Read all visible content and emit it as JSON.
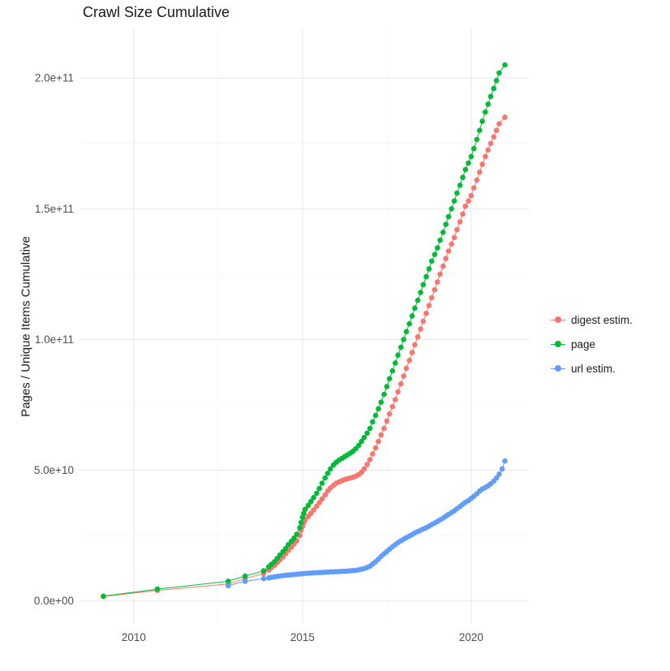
{
  "chart_data": {
    "type": "line",
    "marker": "point",
    "title": "Crawl Size Cumulative",
    "xlabel": "",
    "ylabel": "Pages / Unique Items Cumulative",
    "legend_position": "right",
    "grid": {
      "major": "#e8e8e8",
      "minor": "#f4f4f4"
    },
    "y_unit": "1e9",
    "xlim": [
      2008.44,
      2021.71
    ],
    "ylim_billions": [
      -8.5,
      219
    ],
    "xticks": [
      {
        "v": 2010,
        "label": "2010"
      },
      {
        "v": 2015,
        "label": "2015"
      },
      {
        "v": 2020,
        "label": "2020"
      }
    ],
    "yticks_billions": [
      {
        "v": 0,
        "label": "0.0e+00"
      },
      {
        "v": 50,
        "label": "5.0e+10"
      },
      {
        "v": 100,
        "label": "1.0e+11"
      },
      {
        "v": 150,
        "label": "1.5e+11"
      },
      {
        "v": 200,
        "label": "2.0e+11"
      }
    ],
    "series": [
      {
        "name": "digest estim.",
        "color": "#F8766D",
        "points": [
          [
            2009.1,
            1.7
          ],
          [
            2010.7,
            4.0
          ],
          [
            2012.8,
            6.5
          ],
          [
            2013.3,
            8.5
          ],
          [
            2013.85,
            10.5
          ],
          [
            2014.0,
            11.8
          ],
          [
            2014.08,
            12.7
          ],
          [
            2014.17,
            13.6
          ],
          [
            2014.25,
            14.6
          ],
          [
            2014.33,
            15.7
          ],
          [
            2014.42,
            16.8
          ],
          [
            2014.5,
            18
          ],
          [
            2014.58,
            19.3
          ],
          [
            2014.67,
            20.5
          ],
          [
            2014.75,
            21.8
          ],
          [
            2014.83,
            23
          ],
          [
            2014.92,
            25
          ],
          [
            2014.96,
            27
          ],
          [
            2015.0,
            28.5
          ],
          [
            2015.04,
            30
          ],
          [
            2015.08,
            31
          ],
          [
            2015.17,
            32.3
          ],
          [
            2015.25,
            33.5
          ],
          [
            2015.33,
            34.8
          ],
          [
            2015.42,
            36.2
          ],
          [
            2015.5,
            37.6
          ],
          [
            2015.58,
            39
          ],
          [
            2015.67,
            40.5
          ],
          [
            2015.75,
            42
          ],
          [
            2015.83,
            43.2
          ],
          [
            2015.92,
            44.2
          ],
          [
            2016.0,
            45
          ],
          [
            2016.08,
            45.5
          ],
          [
            2016.17,
            46
          ],
          [
            2016.25,
            46.4
          ],
          [
            2016.33,
            46.7
          ],
          [
            2016.42,
            47
          ],
          [
            2016.5,
            47.3
          ],
          [
            2016.58,
            47.7
          ],
          [
            2016.67,
            48.3
          ],
          [
            2016.75,
            49.2
          ],
          [
            2016.83,
            50.5
          ],
          [
            2016.92,
            52.2
          ],
          [
            2017.0,
            54
          ],
          [
            2017.08,
            56.2
          ],
          [
            2017.17,
            58.5
          ],
          [
            2017.25,
            61
          ],
          [
            2017.33,
            63.5
          ],
          [
            2017.42,
            66
          ],
          [
            2017.5,
            68.8
          ],
          [
            2017.58,
            71.5
          ],
          [
            2017.67,
            74.3
          ],
          [
            2017.75,
            77
          ],
          [
            2017.83,
            80
          ],
          [
            2017.92,
            83
          ],
          [
            2018.0,
            86
          ],
          [
            2018.08,
            89
          ],
          [
            2018.17,
            92
          ],
          [
            2018.25,
            95
          ],
          [
            2018.33,
            98
          ],
          [
            2018.42,
            101
          ],
          [
            2018.5,
            104
          ],
          [
            2018.58,
            107
          ],
          [
            2018.67,
            110
          ],
          [
            2018.75,
            113
          ],
          [
            2018.83,
            116
          ],
          [
            2018.92,
            119
          ],
          [
            2019.0,
            122
          ],
          [
            2019.08,
            125
          ],
          [
            2019.17,
            128
          ],
          [
            2019.25,
            131
          ],
          [
            2019.33,
            133.8
          ],
          [
            2019.42,
            136.5
          ],
          [
            2019.5,
            139
          ],
          [
            2019.58,
            142
          ],
          [
            2019.67,
            145
          ],
          [
            2019.75,
            148
          ],
          [
            2019.83,
            151
          ],
          [
            2019.92,
            153
          ],
          [
            2020.0,
            155
          ],
          [
            2020.08,
            158
          ],
          [
            2020.17,
            161
          ],
          [
            2020.25,
            164
          ],
          [
            2020.33,
            167
          ],
          [
            2020.42,
            170
          ],
          [
            2020.5,
            172.5
          ],
          [
            2020.58,
            175
          ],
          [
            2020.67,
            177.5
          ],
          [
            2020.75,
            180
          ],
          [
            2020.83,
            182.5
          ],
          [
            2021.0,
            185
          ]
        ]
      },
      {
        "name": "page",
        "color": "#00BA38",
        "points": [
          [
            2009.1,
            1.8
          ],
          [
            2010.7,
            4.5
          ],
          [
            2012.8,
            7.5
          ],
          [
            2013.3,
            9.5
          ],
          [
            2013.85,
            11.5
          ],
          [
            2014.0,
            13
          ],
          [
            2014.08,
            14
          ],
          [
            2014.17,
            15
          ],
          [
            2014.25,
            16.2
          ],
          [
            2014.33,
            17.5
          ],
          [
            2014.42,
            18.8
          ],
          [
            2014.5,
            20
          ],
          [
            2014.58,
            21.5
          ],
          [
            2014.67,
            22.8
          ],
          [
            2014.75,
            24
          ],
          [
            2014.83,
            25.5
          ],
          [
            2014.92,
            28
          ],
          [
            2014.96,
            30
          ],
          [
            2015.0,
            32
          ],
          [
            2015.04,
            33.5
          ],
          [
            2015.08,
            35
          ],
          [
            2015.17,
            36.5
          ],
          [
            2015.25,
            38
          ],
          [
            2015.33,
            39.5
          ],
          [
            2015.42,
            41.2
          ],
          [
            2015.5,
            43
          ],
          [
            2015.58,
            45
          ],
          [
            2015.67,
            47
          ],
          [
            2015.75,
            48.8
          ],
          [
            2015.83,
            50.5
          ],
          [
            2015.92,
            52
          ],
          [
            2016.0,
            53
          ],
          [
            2016.08,
            53.8
          ],
          [
            2016.17,
            54.5
          ],
          [
            2016.25,
            55.2
          ],
          [
            2016.33,
            55.8
          ],
          [
            2016.42,
            56.5
          ],
          [
            2016.5,
            57.3
          ],
          [
            2016.58,
            58.2
          ],
          [
            2016.67,
            59.5
          ],
          [
            2016.75,
            61
          ],
          [
            2016.83,
            62.5
          ],
          [
            2016.92,
            64.2
          ],
          [
            2017.0,
            66
          ],
          [
            2017.08,
            68.5
          ],
          [
            2017.17,
            71
          ],
          [
            2017.25,
            73.5
          ],
          [
            2017.33,
            76
          ],
          [
            2017.42,
            79
          ],
          [
            2017.5,
            82
          ],
          [
            2017.58,
            85
          ],
          [
            2017.67,
            88
          ],
          [
            2017.75,
            91
          ],
          [
            2017.83,
            94
          ],
          [
            2017.92,
            97
          ],
          [
            2018.0,
            100
          ],
          [
            2018.08,
            103
          ],
          [
            2018.17,
            106
          ],
          [
            2018.25,
            109
          ],
          [
            2018.33,
            112
          ],
          [
            2018.42,
            115
          ],
          [
            2018.5,
            118
          ],
          [
            2018.58,
            121
          ],
          [
            2018.67,
            124
          ],
          [
            2018.75,
            127
          ],
          [
            2018.83,
            130
          ],
          [
            2018.92,
            132.5
          ],
          [
            2019.0,
            135
          ],
          [
            2019.08,
            138
          ],
          [
            2019.17,
            141
          ],
          [
            2019.25,
            144
          ],
          [
            2019.33,
            147
          ],
          [
            2019.42,
            150
          ],
          [
            2019.5,
            153
          ],
          [
            2019.58,
            156
          ],
          [
            2019.67,
            159
          ],
          [
            2019.75,
            162
          ],
          [
            2019.83,
            165
          ],
          [
            2019.92,
            167.5
          ],
          [
            2020.0,
            170
          ],
          [
            2020.08,
            173
          ],
          [
            2020.17,
            176.5
          ],
          [
            2020.25,
            180
          ],
          [
            2020.33,
            183.5
          ],
          [
            2020.42,
            187
          ],
          [
            2020.5,
            190
          ],
          [
            2020.58,
            193
          ],
          [
            2020.67,
            196
          ],
          [
            2020.75,
            199
          ],
          [
            2020.83,
            202
          ],
          [
            2021.0,
            205
          ]
        ]
      },
      {
        "name": "url estim.",
        "color": "#619CFF",
        "points": [
          [
            2012.8,
            5.8
          ],
          [
            2013.3,
            7.5
          ],
          [
            2013.85,
            8.5
          ],
          [
            2014.0,
            8.8
          ],
          [
            2014.08,
            9.0
          ],
          [
            2014.17,
            9.2
          ],
          [
            2014.25,
            9.4
          ],
          [
            2014.33,
            9.5
          ],
          [
            2014.42,
            9.7
          ],
          [
            2014.5,
            9.8
          ],
          [
            2014.58,
            9.9
          ],
          [
            2014.67,
            10.0
          ],
          [
            2014.75,
            10.1
          ],
          [
            2014.83,
            10.2
          ],
          [
            2014.92,
            10.3
          ],
          [
            2015.0,
            10.4
          ],
          [
            2015.08,
            10.5
          ],
          [
            2015.17,
            10.6
          ],
          [
            2015.25,
            10.65
          ],
          [
            2015.33,
            10.7
          ],
          [
            2015.42,
            10.8
          ],
          [
            2015.5,
            10.85
          ],
          [
            2015.58,
            10.9
          ],
          [
            2015.67,
            11.0
          ],
          [
            2015.75,
            11.0
          ],
          [
            2015.83,
            11.1
          ],
          [
            2015.92,
            11.1
          ],
          [
            2016.0,
            11.2
          ],
          [
            2016.08,
            11.2
          ],
          [
            2016.17,
            11.3
          ],
          [
            2016.25,
            11.3
          ],
          [
            2016.33,
            11.4
          ],
          [
            2016.42,
            11.5
          ],
          [
            2016.5,
            11.6
          ],
          [
            2016.58,
            11.7
          ],
          [
            2016.67,
            11.9
          ],
          [
            2016.75,
            12.1
          ],
          [
            2016.83,
            12.4
          ],
          [
            2016.92,
            12.8
          ],
          [
            2017.0,
            13.3
          ],
          [
            2017.08,
            14.1
          ],
          [
            2017.17,
            15
          ],
          [
            2017.25,
            16
          ],
          [
            2017.33,
            17
          ],
          [
            2017.42,
            18
          ],
          [
            2017.5,
            18.9
          ],
          [
            2017.58,
            19.8
          ],
          [
            2017.67,
            20.7
          ],
          [
            2017.75,
            21.5
          ],
          [
            2017.83,
            22.3
          ],
          [
            2017.92,
            23
          ],
          [
            2018.0,
            23.6
          ],
          [
            2018.08,
            24.2
          ],
          [
            2018.17,
            24.8
          ],
          [
            2018.25,
            25.4
          ],
          [
            2018.33,
            26
          ],
          [
            2018.42,
            26.5
          ],
          [
            2018.5,
            27
          ],
          [
            2018.58,
            27.5
          ],
          [
            2018.67,
            28
          ],
          [
            2018.75,
            28.6
          ],
          [
            2018.83,
            29.2
          ],
          [
            2018.92,
            29.8
          ],
          [
            2019.0,
            30.4
          ],
          [
            2019.08,
            31
          ],
          [
            2019.17,
            31.7
          ],
          [
            2019.25,
            32.4
          ],
          [
            2019.33,
            33.1
          ],
          [
            2019.42,
            33.8
          ],
          [
            2019.5,
            34.5
          ],
          [
            2019.58,
            35.3
          ],
          [
            2019.67,
            36.1
          ],
          [
            2019.75,
            36.9
          ],
          [
            2019.83,
            37.7
          ],
          [
            2019.92,
            38.4
          ],
          [
            2020.0,
            39.2
          ],
          [
            2020.08,
            40
          ],
          [
            2020.17,
            41
          ],
          [
            2020.25,
            42
          ],
          [
            2020.33,
            42.8
          ],
          [
            2020.42,
            43.4
          ],
          [
            2020.5,
            44
          ],
          [
            2020.58,
            44.8
          ],
          [
            2020.67,
            45.8
          ],
          [
            2020.75,
            47
          ],
          [
            2020.83,
            48.5
          ],
          [
            2020.92,
            50.5
          ],
          [
            2021.0,
            53.5
          ]
        ]
      }
    ]
  }
}
